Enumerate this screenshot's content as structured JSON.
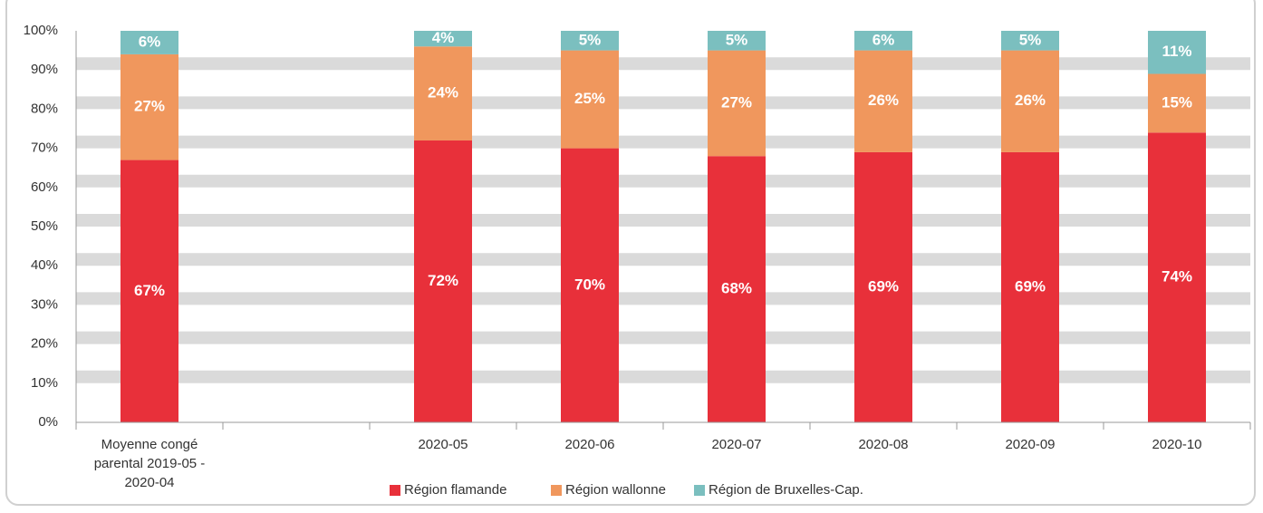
{
  "chart_data": {
    "type": "stacked_bar",
    "categories": [
      "Moyenne congé parental 2019-05 - 2020-04",
      null,
      "2020-05",
      "2020-06",
      "2020-07",
      "2020-08",
      "2020-09",
      "2020-10"
    ],
    "series": [
      {
        "name": "Région flamande",
        "color": "#e8303a",
        "values": [
          67,
          null,
          72,
          70,
          68,
          69,
          69,
          74
        ],
        "value_labels": [
          "67%",
          null,
          "72%",
          "70%",
          "68%",
          "69%",
          "69%",
          "74%"
        ]
      },
      {
        "name": "Région wallonne",
        "color": "#f0975d",
        "values": [
          27,
          null,
          24,
          25,
          27,
          26,
          26,
          15
        ],
        "value_labels": [
          "27%",
          null,
          "24%",
          "25%",
          "27%",
          "26%",
          "26%",
          "15%"
        ]
      },
      {
        "name": "Région de Bruxelles-Cap.",
        "color": "#7bbfbf",
        "values": [
          6,
          null,
          4,
          5,
          5,
          6,
          5,
          11
        ],
        "value_labels": [
          "6%",
          null,
          "4%",
          "5%",
          "5%",
          "6%",
          "5%",
          "11%"
        ]
      }
    ],
    "ylim": [
      0,
      100
    ],
    "yticks": [
      {
        "value": 0,
        "label": "0%"
      },
      {
        "value": 10,
        "label": "10%"
      },
      {
        "value": 20,
        "label": "20%"
      },
      {
        "value": 30,
        "label": "30%"
      },
      {
        "value": 40,
        "label": "40%"
      },
      {
        "value": 50,
        "label": "50%"
      },
      {
        "value": 60,
        "label": "60%"
      },
      {
        "value": 70,
        "label": "70%"
      },
      {
        "value": 80,
        "label": "80%"
      },
      {
        "value": 90,
        "label": "90%"
      },
      {
        "value": 100,
        "label": "100%"
      }
    ],
    "grid": true,
    "legend": "bottom"
  }
}
